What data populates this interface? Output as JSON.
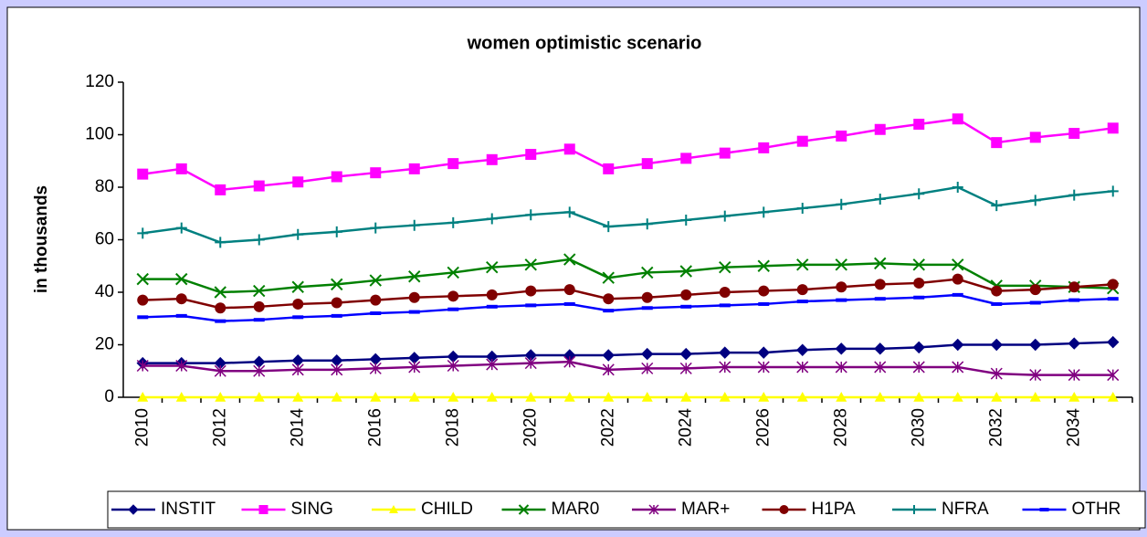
{
  "chart_data": {
    "type": "line",
    "title": "women optimistic scenario",
    "y_label": "in thousands",
    "categories": [
      "2010",
      null,
      "2012",
      null,
      "2014",
      null,
      "2016",
      null,
      "2018",
      null,
      "2020",
      null,
      "2022",
      null,
      "2024",
      null,
      "2026",
      null,
      "2028",
      null,
      "2030",
      null,
      "2032",
      null,
      "2034",
      null
    ],
    "ylim": [
      0,
      120
    ],
    "yticks": [
      0,
      20,
      40,
      60,
      80,
      100,
      120
    ],
    "grid": false,
    "legend": "bottom",
    "series": [
      {
        "name": "INSTIT",
        "color": "#000080",
        "marker": "diamond",
        "values": [
          13,
          13,
          13,
          13.5,
          14,
          14,
          14.5,
          15,
          15.5,
          15.5,
          16,
          16,
          16,
          16.5,
          16.5,
          17,
          17,
          18,
          18.5,
          18.5,
          19,
          20,
          20,
          20,
          20.5,
          21
        ]
      },
      {
        "name": "SING",
        "color": "#ff00ff",
        "marker": "square",
        "values": [
          85,
          87,
          79,
          80.5,
          82,
          84,
          85.5,
          87,
          89,
          90.5,
          92.5,
          94.5,
          87,
          89,
          91,
          93,
          95,
          97.5,
          99.5,
          102,
          104,
          106,
          97,
          99,
          100.5,
          102.5
        ]
      },
      {
        "name": "CHILD",
        "color": "#ffff00",
        "marker": "triangle",
        "values": [
          0,
          0,
          0,
          0,
          0,
          0,
          0,
          0,
          0,
          0,
          0,
          0,
          0,
          0,
          0,
          0,
          0,
          0,
          0,
          0,
          0,
          0,
          0,
          0,
          0,
          0
        ]
      },
      {
        "name": "MAR0",
        "color": "#008000",
        "marker": "x",
        "values": [
          45,
          45,
          40,
          40.5,
          42,
          43,
          44.5,
          46,
          47.5,
          49.5,
          50.5,
          52.5,
          45.5,
          47.5,
          48,
          49.5,
          50,
          50.5,
          50.5,
          51,
          50.5,
          50.5,
          42.5,
          42.5,
          42,
          41.5
        ]
      },
      {
        "name": "MAR+",
        "color": "#800080",
        "marker": "star",
        "values": [
          12,
          12,
          10,
          10,
          10.5,
          10.5,
          11,
          11.5,
          12,
          12.5,
          13,
          13.5,
          10.5,
          11,
          11,
          11.5,
          11.5,
          11.5,
          11.5,
          11.5,
          11.5,
          11.5,
          9,
          8.5,
          8.5,
          8.5
        ]
      },
      {
        "name": "H1PA",
        "color": "#800000",
        "marker": "circle",
        "values": [
          37,
          37.5,
          34,
          34.5,
          35.5,
          36,
          37,
          38,
          38.5,
          39,
          40.5,
          41,
          37.5,
          38,
          39,
          40,
          40.5,
          41,
          42,
          43,
          43.5,
          45,
          40.5,
          41,
          42,
          43
        ]
      },
      {
        "name": "NFRA",
        "color": "#008080",
        "marker": "plus",
        "values": [
          62.5,
          64.5,
          59,
          60,
          62,
          63,
          64.5,
          65.5,
          66.5,
          68,
          69.5,
          70.5,
          65,
          66,
          67.5,
          69,
          70.5,
          72,
          73.5,
          75.5,
          77.5,
          80,
          73,
          75,
          77,
          78.5
        ]
      },
      {
        "name": "OTHR",
        "color": "#0000ff",
        "marker": "dash",
        "values": [
          30.5,
          31,
          29,
          29.5,
          30.5,
          31,
          32,
          32.5,
          33.5,
          34.5,
          35,
          35.5,
          33,
          34,
          34.5,
          35,
          35.5,
          36.5,
          37,
          37.5,
          38,
          39,
          35.5,
          36,
          37,
          37.5
        ]
      }
    ]
  }
}
